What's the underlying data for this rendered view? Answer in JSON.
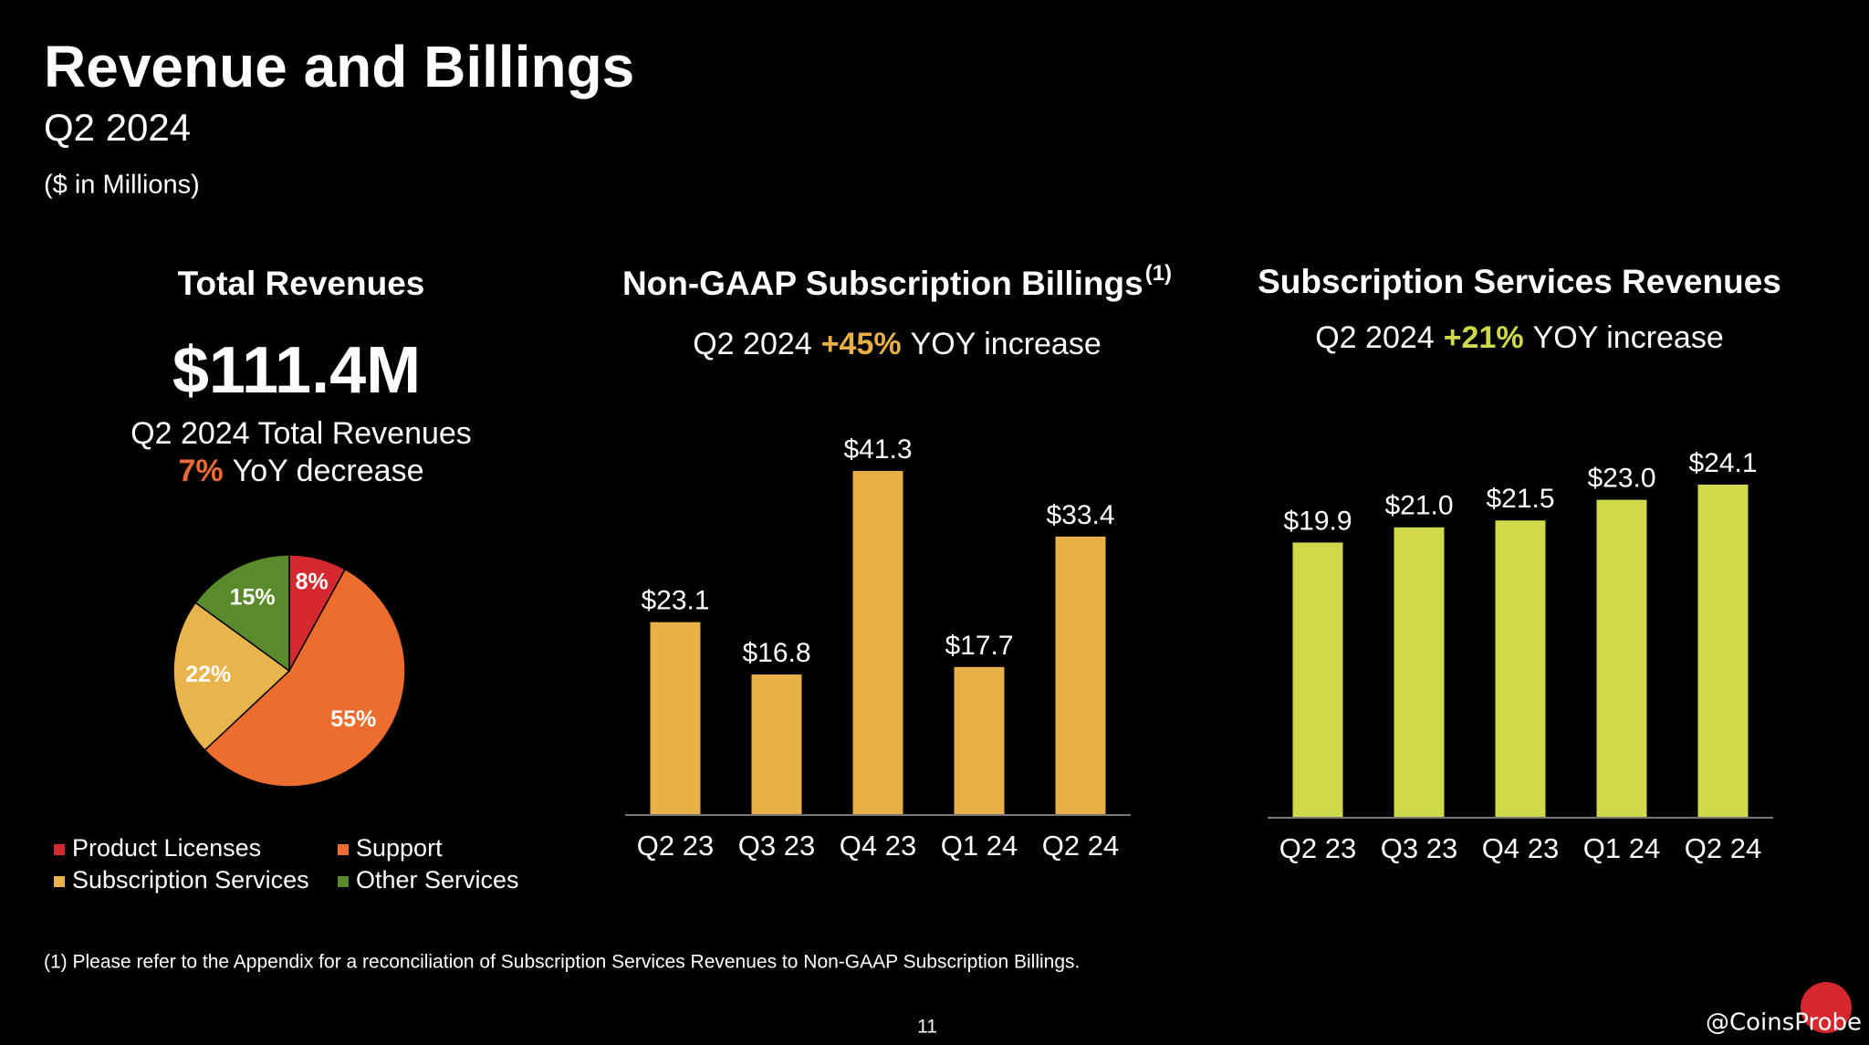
{
  "header": {
    "title": "Revenue and Billings",
    "subtitle": "Q2 2024",
    "unit_note": "($ in Millions)"
  },
  "chart_data": [
    {
      "type": "pie",
      "title": "Total Revenues",
      "title_color": "#ec6b35",
      "headline": "$111.4M",
      "headline_caption": "Q2 2024 Total Revenues",
      "change": "7%",
      "change_text": "YoY decrease",
      "categories": [
        "Product Licenses",
        "Support",
        "Subscription Services",
        "Other Services"
      ],
      "values": [
        8,
        55,
        22,
        15
      ],
      "value_labels": [
        "8%",
        "55%",
        "22%",
        "15%"
      ],
      "colors": [
        "#d42a2f",
        "#ed6d2f",
        "#e9b44c",
        "#5a8a2c"
      ]
    },
    {
      "type": "bar",
      "title": "Non-GAAP Subscription Billings",
      "title_note": "(1)",
      "title_color": "#e8b046",
      "subtitle_period": "Q2 2024",
      "subtitle_change": "+45%",
      "subtitle_text": "YOY increase",
      "color": "#e8b046",
      "categories": [
        "Q2 23",
        "Q3 23",
        "Q4 23",
        "Q1 24",
        "Q2 24"
      ],
      "values": [
        23.1,
        16.8,
        41.3,
        17.7,
        33.4
      ],
      "value_labels": [
        "$23.1",
        "$16.8",
        "$41.3",
        "$17.7",
        "$33.4"
      ]
    },
    {
      "type": "bar",
      "title": "Subscription Services Revenues",
      "title_color": "#d0d94a",
      "subtitle_period": "Q2 2024",
      "subtitle_change": "+21%",
      "subtitle_text": "YOY increase",
      "color": "#d0d94a",
      "categories": [
        "Q2 23",
        "Q3 23",
        "Q4 23",
        "Q1 24",
        "Q2 24"
      ],
      "values": [
        19.9,
        21.0,
        21.5,
        23.0,
        24.1
      ],
      "value_labels": [
        "$19.9",
        "$21.0",
        "$21.5",
        "$23.0",
        "$24.1"
      ]
    }
  ],
  "footnote": "(1) Please refer to the Appendix for a reconciliation of Subscription Services Revenues to Non-GAAP Subscription Billings.",
  "page_number": "11",
  "watermark": "@CoinsProbe"
}
